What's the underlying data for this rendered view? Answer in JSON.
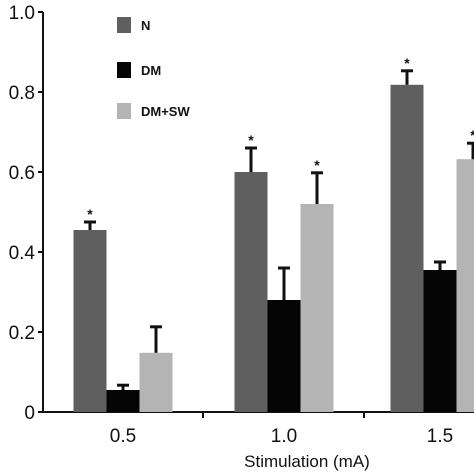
{
  "chart_data": {
    "type": "bar",
    "categories": [
      "0.5",
      "1.0",
      "1.5"
    ],
    "series": [
      {
        "name": "N",
        "values": [
          0.455,
          0.6,
          0.818
        ],
        "errors": [
          0.02,
          0.06,
          0.035
        ],
        "significant": [
          true,
          true,
          true
        ],
        "color": "#5f5f5f"
      },
      {
        "name": "DM",
        "values": [
          0.055,
          0.28,
          0.355
        ],
        "errors": [
          0.012,
          0.08,
          0.02
        ],
        "significant": [
          false,
          false,
          false
        ],
        "color": "#050505"
      },
      {
        "name": "DM+SW",
        "values": [
          0.148,
          0.52,
          0.632
        ],
        "errors": [
          0.065,
          0.078,
          0.04
        ],
        "significant": [
          false,
          true,
          true
        ],
        "color": "#b4b4b4"
      }
    ],
    "title": "",
    "xlabel": "Stimulation (mA)",
    "ylabel": "",
    "ylim": [
      0,
      1.0
    ],
    "yticks": [
      "0",
      "0.2",
      "0.4",
      "0.6",
      "0.8",
      "1.0"
    ],
    "significance_marker": "*",
    "legend_position": "top-left",
    "grid": false
  }
}
